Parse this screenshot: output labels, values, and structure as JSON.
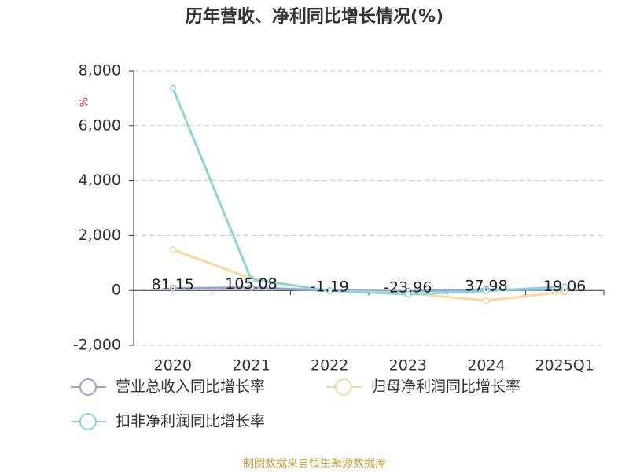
{
  "chart_data": {
    "type": "line",
    "title": "历年营收、净利同比增长情况(%)",
    "y_unit": "%",
    "source": "制图数据来自恒生聚源数据库",
    "categories": [
      "2020",
      "2021",
      "2022",
      "2023",
      "2024",
      "2025Q1"
    ],
    "series": [
      {
        "name": "营业总收入同比增长率",
        "color": "#8fa8d8",
        "values": [
          81.15,
          105.08,
          -1.19,
          -23.96,
          37.98,
          19.06
        ],
        "data_labels": true
      },
      {
        "name": "归母净利润同比增长率",
        "color": "#fad89a",
        "values": [
          1490,
          430,
          -20,
          -100,
          -370,
          -50
        ]
      },
      {
        "name": "扣非净利润同比增长率",
        "color": "#8dd3d8",
        "values": [
          7370,
          400,
          -10,
          -140,
          -20,
          140
        ]
      }
    ],
    "ylim": [
      -2000,
      8000
    ],
    "yticks": [
      {
        "value": -2000,
        "label": "-2,000"
      },
      0,
      {
        "value": 2000,
        "label": "2,000"
      },
      {
        "value": 4000,
        "label": "4,000"
      },
      {
        "value": 6000,
        "label": "6,000"
      },
      {
        "value": 8000,
        "label": "8,000"
      }
    ],
    "grid": true
  }
}
